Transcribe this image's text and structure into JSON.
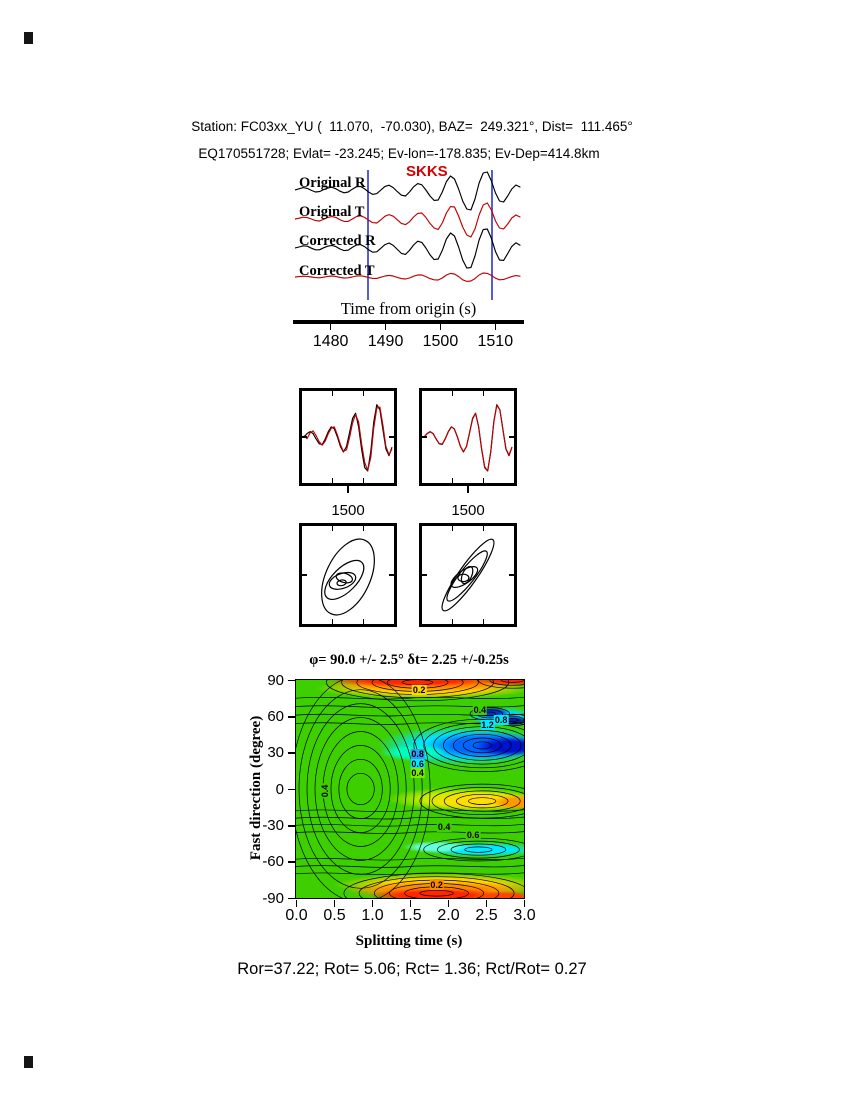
{
  "header": {
    "line1": "Station: FC03xx_YU (  11.070,  -70.030), BAZ=  249.321°, Dist=  111.465°",
    "line2": "EQ170551728; Evlat= -23.245; Ev-lon=-178.835; Ev-Dep=414.8km"
  },
  "footer": {
    "stats": "Ror=37.22; Rot= 5.06; Rct= 1.36; Rct/Rot= 0.27"
  },
  "chart_data": [
    {
      "id": "seismogram-traces",
      "type": "line",
      "xlabel": "Time from origin (s)",
      "xlim": [
        1473.5,
        1514.5
      ],
      "xticks": [
        1480,
        1490,
        1500,
        1510
      ],
      "phase_marker": {
        "label": "SKKS",
        "time": 1500.5
      },
      "window_s": [
        1486.8,
        1509.4
      ],
      "window_color": "#2b35c8",
      "series": [
        {
          "name": "Original R",
          "color": "#000000",
          "values": [
            0,
            0.06,
            0.12,
            0.08,
            -0.02,
            -0.1,
            -0.08,
            0.02,
            0.1,
            0.14,
            0.06,
            -0.06,
            -0.14,
            -0.1,
            0.04,
            0.16,
            0.18,
            0.06,
            -0.1,
            -0.22,
            -0.18,
            0,
            0.18,
            0.24,
            0.12,
            -0.08,
            -0.26,
            -0.3,
            -0.1,
            0.16,
            0.32,
            0.26,
            0,
            -0.3,
            -0.52,
            -0.5,
            -0.1,
            0.42,
            0.7,
            0.55,
            0.05,
            -0.55,
            -0.95,
            -1,
            -0.45,
            0.35,
            0.85,
            0.9,
            0.45,
            -0.15,
            -0.55,
            -0.6,
            -0.3,
            0.05,
            0.25,
            0.15
          ]
        },
        {
          "name": "Original T",
          "color": "#c00000",
          "values": [
            0,
            0.04,
            0.09,
            0.07,
            0,
            -0.08,
            -0.1,
            -0.02,
            0.08,
            0.12,
            0.08,
            -0.04,
            -0.12,
            -0.12,
            0,
            0.12,
            0.16,
            0.08,
            -0.06,
            -0.18,
            -0.2,
            -0.04,
            0.14,
            0.22,
            0.14,
            -0.04,
            -0.22,
            -0.28,
            -0.14,
            0.1,
            0.28,
            0.3,
            0.08,
            -0.22,
            -0.45,
            -0.52,
            -0.2,
            0.3,
            0.62,
            0.6,
            0.15,
            -0.4,
            -0.8,
            -0.9,
            -0.5,
            0.2,
            0.7,
            0.8,
            0.45,
            -0.1,
            -0.45,
            -0.5,
            -0.25,
            0.05,
            0.2,
            0.1
          ]
        },
        {
          "name": "Corrected R",
          "color": "#000000",
          "values": [
            0,
            0.05,
            0.11,
            0.09,
            -0.01,
            -0.09,
            -0.09,
            0.01,
            0.09,
            0.13,
            0.07,
            -0.05,
            -0.13,
            -0.11,
            0.03,
            0.15,
            0.17,
            0.07,
            -0.09,
            -0.21,
            -0.19,
            -0.01,
            0.17,
            0.25,
            0.13,
            -0.07,
            -0.27,
            -0.32,
            -0.12,
            0.15,
            0.34,
            0.28,
            0,
            -0.34,
            -0.58,
            -0.55,
            -0.12,
            0.45,
            0.75,
            0.6,
            0.05,
            -0.6,
            -1,
            -0.98,
            -0.4,
            0.4,
            0.92,
            0.95,
            0.48,
            -0.18,
            -0.6,
            -0.62,
            -0.28,
            0.08,
            0.26,
            0.14
          ]
        },
        {
          "name": "Corrected T",
          "color": "#c00000",
          "values": [
            0,
            0.02,
            0.04,
            0.03,
            0,
            -0.03,
            -0.04,
            -0.01,
            0.03,
            0.05,
            0.03,
            -0.02,
            -0.05,
            -0.04,
            0,
            0.05,
            0.06,
            0.03,
            -0.03,
            -0.07,
            -0.07,
            -0.01,
            0.05,
            0.08,
            0.05,
            -0.02,
            -0.08,
            -0.1,
            -0.05,
            0.04,
            0.1,
            0.1,
            0.02,
            -0.08,
            -0.14,
            -0.15,
            -0.05,
            0.1,
            0.18,
            0.15,
            0.02,
            -0.14,
            -0.22,
            -0.2,
            -0.08,
            0.1,
            0.2,
            0.18,
            0.08,
            -0.06,
            -0.14,
            -0.12,
            -0.05,
            0.02,
            0.07,
            0.04
          ]
        }
      ]
    },
    {
      "id": "window-waveforms-uncorrected",
      "type": "line",
      "xticks": [
        1500
      ],
      "series": [
        {
          "name": "R",
          "color": "#000000",
          "values": [
            0,
            0.1,
            0.16,
            0.1,
            -0.06,
            -0.2,
            -0.22,
            -0.06,
            0.16,
            0.3,
            0.24,
            0,
            -0.28,
            -0.44,
            -0.28,
            0.12,
            0.55,
            0.7,
            0.3,
            -0.38,
            -0.9,
            -1,
            -0.42,
            0.45,
            0.95,
            0.8,
            0.22,
            -0.35,
            -0.55,
            -0.3
          ]
        },
        {
          "name": "T",
          "color": "#c00000",
          "values": [
            0.05,
            -0.05,
            0.12,
            0.18,
            0.04,
            -0.14,
            -0.24,
            -0.12,
            0.1,
            0.26,
            0.3,
            0.06,
            -0.22,
            -0.42,
            -0.38,
            -0.02,
            0.42,
            0.66,
            0.44,
            -0.22,
            -0.75,
            -0.98,
            -0.6,
            0.28,
            0.85,
            0.88,
            0.35,
            -0.28,
            -0.52,
            -0.35
          ]
        }
      ]
    },
    {
      "id": "window-waveforms-corrected",
      "type": "line",
      "xticks": [
        1500
      ],
      "series": [
        {
          "name": "R",
          "color": "#000000",
          "values": [
            0,
            0.1,
            0.16,
            0.1,
            -0.06,
            -0.2,
            -0.22,
            -0.06,
            0.16,
            0.3,
            0.24,
            0,
            -0.28,
            -0.44,
            -0.28,
            0.12,
            0.55,
            0.7,
            0.3,
            -0.38,
            -0.9,
            -1,
            -0.42,
            0.45,
            0.95,
            0.8,
            0.22,
            -0.35,
            -0.55,
            -0.3
          ]
        },
        {
          "name": "T",
          "color": "#c00000",
          "values": [
            0,
            0.09,
            0.15,
            0.1,
            -0.05,
            -0.19,
            -0.21,
            -0.05,
            0.15,
            0.29,
            0.24,
            0.01,
            -0.27,
            -0.43,
            -0.28,
            0.11,
            0.53,
            0.69,
            0.31,
            -0.36,
            -0.88,
            -0.99,
            -0.43,
            0.43,
            0.93,
            0.8,
            0.23,
            -0.34,
            -0.53,
            -0.29
          ]
        }
      ]
    },
    {
      "id": "particle-motion-uncorrected",
      "type": "line",
      "ellipses": [
        {
          "cx": 50,
          "cy": 52,
          "rx": 44,
          "ry": 24,
          "rot": -65
        },
        {
          "cx": 46,
          "cy": 55,
          "rx": 27,
          "ry": 13,
          "rot": -45
        },
        {
          "cx": 44,
          "cy": 56,
          "rx": 15,
          "ry": 8,
          "rot": -20
        },
        {
          "cx": 46,
          "cy": 53,
          "rx": 9,
          "ry": 5,
          "rot": 15
        },
        {
          "cx": 43,
          "cy": 58,
          "rx": 5,
          "ry": 3,
          "rot": -10
        }
      ]
    },
    {
      "id": "particle-motion-corrected",
      "type": "line",
      "ellipses": [
        {
          "cx": 50,
          "cy": 50,
          "rx": 47,
          "ry": 10,
          "rot": -55
        },
        {
          "cx": 49,
          "cy": 51,
          "rx": 34,
          "ry": 8,
          "rot": -52
        },
        {
          "cx": 46,
          "cy": 52,
          "rx": 17,
          "ry": 7,
          "rot": -35
        },
        {
          "cx": 49,
          "cy": 50,
          "rx": 10,
          "ry": 5,
          "rot": -65
        },
        {
          "cx": 45,
          "cy": 53,
          "rx": 6,
          "ry": 4,
          "rot": 0
        }
      ]
    },
    {
      "id": "splitting-error-surface",
      "type": "heatmap",
      "title": "φ= 90.0 +/- 2.5° δt= 2.25 +/-0.25s",
      "xlabel": "Splitting time (s)",
      "ylabel": "Fast direction (degree)",
      "xlim": [
        0,
        3
      ],
      "ylim": [
        -90,
        90
      ],
      "xticks": [
        "0.0",
        "0.5",
        "1.0",
        "1.5",
        "2.0",
        "2.5",
        "3.0"
      ],
      "yticks": [
        90,
        60,
        30,
        0,
        -30,
        -60,
        -90
      ],
      "best_fit": {
        "fast_direction_deg": 90.0,
        "fast_direction_err_deg": 2.5,
        "delay_time_s": 2.25,
        "delay_time_err_s": 0.25
      },
      "base_color": "#3ecf00",
      "regions": [
        {
          "color": "#ffd400",
          "cx": 1.7,
          "cy": 83,
          "rx": 1.45,
          "ry": 9
        },
        {
          "color": "#ff8800",
          "cx": 1.7,
          "cy": 87,
          "rx": 1.35,
          "ry": 7
        },
        {
          "color": "#ff2600",
          "cx": 1.55,
          "cy": 90,
          "rx": 1.15,
          "ry": 6
        },
        {
          "color": "#ff2600",
          "cx": 2.85,
          "cy": 91,
          "rx": 0.5,
          "ry": 6
        },
        {
          "color": "#00d9ff",
          "cx": 2.7,
          "cy": 60,
          "rx": 0.45,
          "ry": 8
        },
        {
          "color": "#0033cc",
          "cx": 2.55,
          "cy": 63,
          "rx": 0.26,
          "ry": 4.5
        },
        {
          "color": "#0022aa",
          "cx": 2.85,
          "cy": 56,
          "rx": 0.22,
          "ry": 4
        },
        {
          "color": "#00e5ff",
          "cx": 2.2,
          "cy": 36,
          "rx": 1.15,
          "ry": 17
        },
        {
          "color": "#0066ff",
          "cx": 2.5,
          "cy": 36,
          "rx": 0.8,
          "ry": 12
        },
        {
          "color": "#0011cc",
          "cx": 2.8,
          "cy": 35,
          "rx": 0.45,
          "ry": 8
        },
        {
          "color": "#00ffbb",
          "cx": 1.55,
          "cy": 30,
          "rx": 0.45,
          "ry": 7
        },
        {
          "color": "#c8ee00",
          "cx": 2.2,
          "cy": -8,
          "rx": 1.0,
          "ry": 10
        },
        {
          "color": "#ffdd00",
          "cx": 2.45,
          "cy": -10,
          "rx": 0.8,
          "ry": 8
        },
        {
          "color": "#ff9900",
          "cx": 2.9,
          "cy": -11,
          "rx": 0.32,
          "ry": 6
        },
        {
          "color": "#00eaff",
          "cx": 2.45,
          "cy": -50,
          "rx": 0.8,
          "ry": 6.5
        },
        {
          "color": "#66ffd9",
          "cx": 1.85,
          "cy": -48,
          "rx": 0.45,
          "ry": 5
        },
        {
          "color": "#ffd400",
          "cx": 1.9,
          "cy": -79,
          "rx": 1.4,
          "ry": 10
        },
        {
          "color": "#ff8800",
          "cx": 1.9,
          "cy": -84,
          "rx": 1.25,
          "ry": 8
        },
        {
          "color": "#ff2600",
          "cx": 1.85,
          "cy": -88,
          "rx": 0.9,
          "ry": 6
        },
        {
          "color": "#ff4400",
          "cx": 2.75,
          "cy": -89,
          "rx": 0.42,
          "ry": 5
        }
      ],
      "contour_sets": [
        {
          "cx": 0.85,
          "cy": 0,
          "n": 8,
          "rx0": 0.18,
          "drx": 0.105,
          "ry0": 13,
          "dry": 11.5
        },
        {
          "cx": 2.45,
          "cy": 36,
          "n": 7,
          "rx0": 0.12,
          "drx": 0.13,
          "ry0": 3,
          "dry": 3.1
        },
        {
          "cx": 2.45,
          "cy": -10,
          "n": 5,
          "rx0": 0.18,
          "drx": 0.16,
          "ry0": 2.8,
          "dry": 2.8
        },
        {
          "cx": 2.4,
          "cy": -50,
          "n": 4,
          "rx0": 0.18,
          "drx": 0.18,
          "ry0": 2.2,
          "dry": 2.4
        },
        {
          "cx": 1.85,
          "cy": -86,
          "n": 6,
          "rx0": 0.22,
          "drx": 0.2,
          "ry0": 2.4,
          "dry": 2.8
        },
        {
          "cx": 1.6,
          "cy": 88,
          "n": 6,
          "rx0": 0.2,
          "drx": 0.2,
          "ry0": 2.2,
          "dry": 2.6
        },
        {
          "cx": 2.85,
          "cy": 90,
          "n": 3,
          "rx0": 0.15,
          "drx": 0.15,
          "ry0": 2,
          "dry": 2.4
        },
        {
          "cx": 2.55,
          "cy": 62,
          "n": 3,
          "rx0": 0.08,
          "drx": 0.09,
          "ry0": 1.6,
          "dry": 1.8
        },
        {
          "cx": 2.85,
          "cy": 57,
          "n": 3,
          "rx0": 0.07,
          "drx": 0.08,
          "ry0": 1.4,
          "dry": 1.7
        }
      ],
      "contour_hlines": [
        75,
        68,
        61,
        54,
        -18,
        -24,
        -30,
        -36,
        -58,
        -64,
        -70
      ],
      "contour_labels": [
        {
          "text": "0.2",
          "x": 1.62,
          "y": 82,
          "bg": "#ffd400"
        },
        {
          "text": "0.4",
          "x": 2.42,
          "y": 65,
          "bg": "#3ecf00"
        },
        {
          "text": "0.8",
          "x": 2.7,
          "y": 57,
          "bg": "#00eaff"
        },
        {
          "text": "1.2",
          "x": 2.52,
          "y": 53,
          "bg": "#00eaff"
        },
        {
          "text": "0.4",
          "x": 0.38,
          "y": -2,
          "bg": "#3ecf00",
          "rot": -90
        },
        {
          "text": "0.8",
          "x": 1.6,
          "y": 29,
          "bg": "#2f9bff"
        },
        {
          "text": "0.6",
          "x": 1.6,
          "y": 21,
          "bg": "#00eaff"
        },
        {
          "text": "0.4",
          "x": 1.6,
          "y": 13,
          "bg": "#7de800"
        },
        {
          "text": "0.4",
          "x": 1.95,
          "y": -31,
          "bg": "#3ecf00"
        },
        {
          "text": "0.6",
          "x": 2.33,
          "y": -38,
          "bg": "#3ecf00"
        },
        {
          "text": "0.2",
          "x": 1.85,
          "y": -79,
          "bg": "#ff8800"
        }
      ]
    }
  ]
}
